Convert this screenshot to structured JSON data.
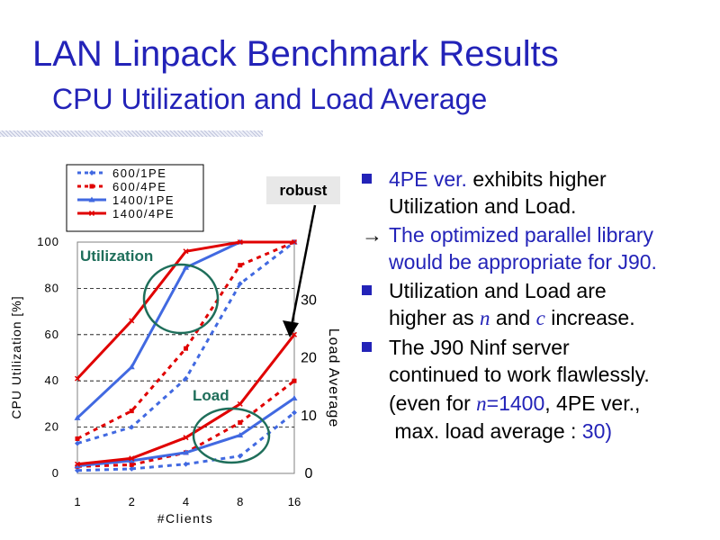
{
  "slide": {
    "title": "LAN Linpack Benchmark Results",
    "subtitle": "CPU Utilization and Load Average"
  },
  "bullets": {
    "b1": {
      "hl": "4PE ver.",
      "rest1": " exhibits higher",
      "line2": "Utilization and Load."
    },
    "b2": {
      "arrow": "→",
      "line1": "The optimized parallel library",
      "line2": "would be appropriate for J90."
    },
    "b3": {
      "line1": "Utilization and Load are",
      "pre": "higher as ",
      "n": "n",
      "mid": " and ",
      "c": "c",
      "post": " increase."
    },
    "b4": {
      "line1": "The J90 Ninf server",
      "line2": "continued to work flawlessly."
    },
    "b5": {
      "pre": "(even for ",
      "n": "n",
      "eq": "=1400",
      "mid": ", 4PE ver.,",
      "line2pre": "max. load average : ",
      "val": "30",
      "close": ")"
    }
  },
  "colors": {
    "accent": "#2323b8",
    "blue": "#4169e1",
    "red": "#e00000",
    "circle": "#1e6e5a"
  },
  "chart_data": {
    "type": "line",
    "categories": [
      "1",
      "2",
      "4",
      "8",
      "16"
    ],
    "xlabel": "#Clients",
    "ylabel": "CPU Utilization [%]",
    "ylabel2": "Load Average",
    "ylim": [
      0,
      100
    ],
    "y2lim": [
      0,
      40
    ],
    "yticks": [
      0,
      20,
      40,
      60,
      80,
      100
    ],
    "y2ticks": [
      "0",
      "10",
      "20",
      "30"
    ],
    "grid": true,
    "legend_position": "top-left",
    "legend": [
      "600/1PE",
      "600/4PE",
      "1400/1PE",
      "1400/4PE"
    ],
    "annotations": {
      "utilization": "Utilization",
      "load": "Load",
      "robust": "robust"
    },
    "series": [
      {
        "name": "600/1PE",
        "metric": "utilization",
        "color": "#4169e1",
        "dash": true,
        "values": [
          13,
          20,
          41,
          82,
          100
        ]
      },
      {
        "name": "600/4PE",
        "metric": "utilization",
        "color": "#e00000",
        "dash": true,
        "values": [
          15,
          27,
          54,
          90,
          100
        ]
      },
      {
        "name": "1400/1PE",
        "metric": "utilization",
        "color": "#4169e1",
        "dash": false,
        "values": [
          24,
          46,
          89,
          100,
          100
        ]
      },
      {
        "name": "1400/4PE",
        "metric": "utilization",
        "color": "#e00000",
        "dash": false,
        "values": [
          41,
          66,
          96,
          100,
          100
        ]
      },
      {
        "name": "600/1PE",
        "metric": "load",
        "color": "#4169e1",
        "dash": true,
        "values": [
          0.5,
          0.8,
          1.6,
          3,
          10.5
        ]
      },
      {
        "name": "600/4PE",
        "metric": "load",
        "color": "#e00000",
        "dash": true,
        "values": [
          1.2,
          1.5,
          3.6,
          8.8,
          16
        ]
      },
      {
        "name": "1400/1PE",
        "metric": "load",
        "color": "#4169e1",
        "dash": false,
        "values": [
          1.3,
          2.2,
          3.6,
          6.6,
          13
        ]
      },
      {
        "name": "1400/4PE",
        "metric": "load",
        "color": "#e00000",
        "dash": false,
        "values": [
          1.6,
          2.6,
          6.2,
          12,
          24
        ]
      }
    ]
  }
}
